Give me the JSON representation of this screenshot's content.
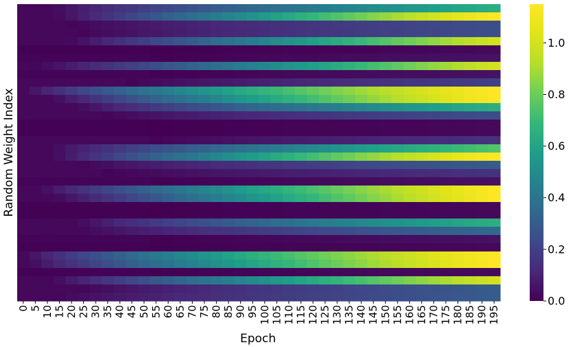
{
  "chart_data": {
    "type": "heatmap",
    "title": "",
    "xlabel": "Epoch",
    "ylabel": "Random Weight Index",
    "x_tick_labels": [
      "0",
      "5",
      "10",
      "15",
      "20",
      "25",
      "30",
      "35",
      "40",
      "45",
      "50",
      "55",
      "60",
      "65",
      "70",
      "75",
      "80",
      "85",
      "90",
      "95",
      "100",
      "105",
      "110",
      "115",
      "120",
      "125",
      "130",
      "135",
      "140",
      "145",
      "150",
      "155",
      "160",
      "165",
      "170",
      "175",
      "180",
      "185",
      "190",
      "195"
    ],
    "n_rows": 36,
    "colorbar": {
      "colormap": "viridis",
      "range": [
        0.0,
        1.15
      ],
      "tick_labels": [
        "0.0",
        "0.2",
        "0.4",
        "0.6",
        "0.8",
        "1.0"
      ],
      "tick_values": [
        0.0,
        0.2,
        0.4,
        0.6,
        0.8,
        1.0
      ]
    },
    "row_max_values": [
      0.65,
      1.15,
      0.25,
      0.25,
      1.0,
      0.02,
      0.05,
      1.0,
      0.05,
      0.2,
      1.15,
      1.15,
      0.65,
      0.25,
      0.02,
      0.02,
      0.15,
      0.75,
      1.15,
      0.3,
      0.15,
      0.05,
      1.15,
      1.15,
      0.02,
      0.02,
      0.65,
      0.35,
      0.05,
      0.02,
      1.15,
      1.15,
      0.03,
      1.0,
      0.3,
      0.3
    ],
    "row_start_epochs": [
      10,
      10,
      15,
      20,
      15,
      50,
      50,
      0,
      50,
      40,
      0,
      10,
      20,
      30,
      50,
      50,
      50,
      10,
      10,
      20,
      30,
      50,
      5,
      10,
      50,
      50,
      20,
      20,
      50,
      50,
      0,
      0,
      50,
      10,
      20,
      10
    ],
    "row_growth_exponents": [
      0.8,
      1.0,
      0.8,
      0.8,
      1.0,
      1,
      1,
      1.1,
      1,
      0.8,
      0.8,
      0.9,
      0.8,
      0.8,
      1,
      1,
      0.8,
      0.8,
      0.9,
      0.8,
      0.8,
      1,
      0.9,
      1.0,
      1,
      1,
      0.8,
      0.8,
      1,
      1,
      0.8,
      0.9,
      1,
      0.9,
      0.8,
      0.8
    ],
    "max_epoch": 195
  }
}
